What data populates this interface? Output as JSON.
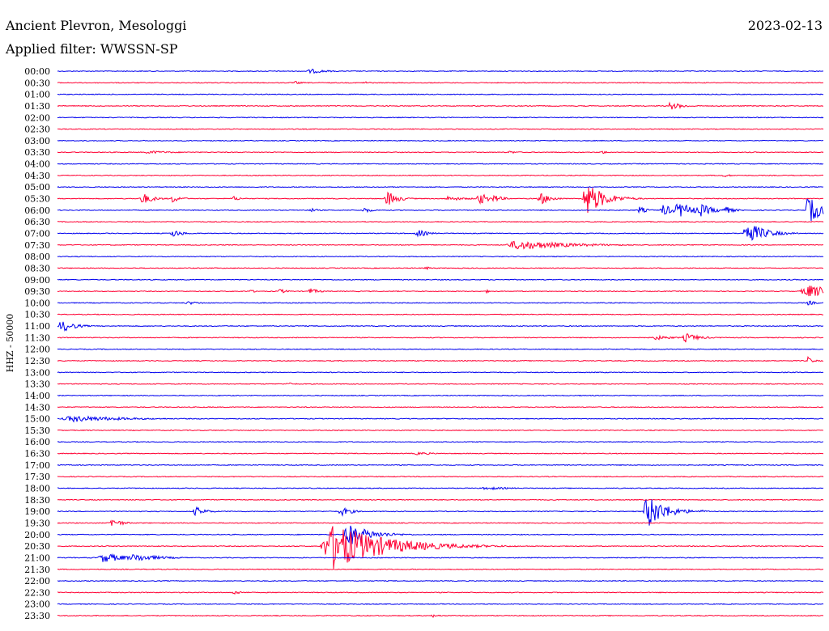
{
  "chart_data": {
    "type": "line",
    "title": "Ancient Plevron, Mesologgi",
    "date": "2023-02-13",
    "filter_label": "Applied filter: WWSSN-SP",
    "channel_label": "HHZ - 50000",
    "row_labels": [
      "00:00",
      "00:30",
      "01:00",
      "01:30",
      "02:00",
      "02:30",
      "03:00",
      "03:30",
      "04:00",
      "04:30",
      "05:00",
      "05:30",
      "06:00",
      "06:30",
      "07:00",
      "07:30",
      "08:00",
      "08:30",
      "09:00",
      "09:30",
      "10:00",
      "10:30",
      "11:00",
      "11:30",
      "12:00",
      "12:30",
      "13:00",
      "13:30",
      "14:00",
      "14:30",
      "15:00",
      "15:30",
      "16:00",
      "16:30",
      "17:00",
      "17:30",
      "18:00",
      "18:30",
      "19:00",
      "19:30",
      "20:00",
      "20:30",
      "21:00",
      "21:30",
      "22:00",
      "22:30",
      "23:00",
      "23:30"
    ],
    "trace_colors": [
      "#0000ee",
      "#ff0033"
    ],
    "events": [
      {
        "row": 0,
        "t": 0.33,
        "amp": 3,
        "dur": 0.02
      },
      {
        "row": 1,
        "t": 0.31,
        "amp": 2,
        "dur": 0.01
      },
      {
        "row": 1,
        "t": 0.4,
        "amp": 2,
        "dur": 0.01
      },
      {
        "row": 3,
        "t": 0.8,
        "amp": 5,
        "dur": 0.015
      },
      {
        "row": 7,
        "t": 0.12,
        "amp": 2,
        "dur": 0.03
      },
      {
        "row": 7,
        "t": 0.59,
        "amp": 2,
        "dur": 0.01
      },
      {
        "row": 7,
        "t": 0.71,
        "amp": 2,
        "dur": 0.01
      },
      {
        "row": 9,
        "t": 0.87,
        "amp": 2,
        "dur": 0.01
      },
      {
        "row": 11,
        "t": 0.11,
        "amp": 8,
        "dur": 0.012
      },
      {
        "row": 11,
        "t": 0.15,
        "amp": 5,
        "dur": 0.01
      },
      {
        "row": 11,
        "t": 0.23,
        "amp": 3,
        "dur": 0.01
      },
      {
        "row": 11,
        "t": 0.43,
        "amp": 10,
        "dur": 0.012
      },
      {
        "row": 11,
        "t": 0.51,
        "amp": 3,
        "dur": 0.02
      },
      {
        "row": 11,
        "t": 0.55,
        "amp": 8,
        "dur": 0.012
      },
      {
        "row": 11,
        "t": 0.57,
        "amp": 5,
        "dur": 0.01
      },
      {
        "row": 11,
        "t": 0.63,
        "amp": 8,
        "dur": 0.012
      },
      {
        "row": 11,
        "t": 0.69,
        "amp": 22,
        "dur": 0.02
      },
      {
        "row": 12,
        "t": 0.33,
        "amp": 3,
        "dur": 0.008
      },
      {
        "row": 12,
        "t": 0.4,
        "amp": 4,
        "dur": 0.008
      },
      {
        "row": 12,
        "t": 0.76,
        "amp": 5,
        "dur": 0.008
      },
      {
        "row": 12,
        "t": 0.79,
        "amp": 8,
        "dur": 0.012
      },
      {
        "row": 12,
        "t": 0.81,
        "amp": 10,
        "dur": 0.02
      },
      {
        "row": 12,
        "t": 0.84,
        "amp": 8,
        "dur": 0.015
      },
      {
        "row": 12,
        "t": 0.87,
        "amp": 6,
        "dur": 0.01
      },
      {
        "row": 12,
        "t": 0.98,
        "amp": 18,
        "dur": 0.015
      },
      {
        "row": 14,
        "t": 0.15,
        "amp": 5,
        "dur": 0.012
      },
      {
        "row": 14,
        "t": 0.47,
        "amp": 5,
        "dur": 0.012
      },
      {
        "row": 14,
        "t": 0.9,
        "amp": 15,
        "dur": 0.02
      },
      {
        "row": 15,
        "t": 0.6,
        "amp": 6,
        "dur": 0.06
      },
      {
        "row": 17,
        "t": 0.48,
        "amp": 2,
        "dur": 0.01
      },
      {
        "row": 19,
        "t": 0.25,
        "amp": 2,
        "dur": 0.01
      },
      {
        "row": 19,
        "t": 0.29,
        "amp": 3,
        "dur": 0.01
      },
      {
        "row": 19,
        "t": 0.33,
        "amp": 4,
        "dur": 0.01
      },
      {
        "row": 19,
        "t": 0.56,
        "amp": 2,
        "dur": 0.005
      },
      {
        "row": 19,
        "t": 0.98,
        "amp": 8,
        "dur": 0.04
      },
      {
        "row": 20,
        "t": 0.17,
        "amp": 2,
        "dur": 0.02
      },
      {
        "row": 20,
        "t": 0.98,
        "amp": 3,
        "dur": 0.01
      },
      {
        "row": 22,
        "t": 0.005,
        "amp": 8,
        "dur": 0.015
      },
      {
        "row": 23,
        "t": 0.78,
        "amp": 3,
        "dur": 0.02
      },
      {
        "row": 23,
        "t": 0.82,
        "amp": 6,
        "dur": 0.015
      },
      {
        "row": 25,
        "t": 0.98,
        "amp": 5,
        "dur": 0.006
      },
      {
        "row": 27,
        "t": 0.3,
        "amp": 2,
        "dur": 0.01
      },
      {
        "row": 30,
        "t": 0.02,
        "amp": 4,
        "dur": 0.06
      },
      {
        "row": 33,
        "t": 0.47,
        "amp": 2,
        "dur": 0.02
      },
      {
        "row": 36,
        "t": 0.56,
        "amp": 2,
        "dur": 0.03
      },
      {
        "row": 38,
        "t": 0.18,
        "amp": 6,
        "dur": 0.012
      },
      {
        "row": 38,
        "t": 0.37,
        "amp": 6,
        "dur": 0.012
      },
      {
        "row": 38,
        "t": 0.77,
        "amp": 22,
        "dur": 0.02
      },
      {
        "row": 38,
        "t": 0.84,
        "amp": 2,
        "dur": 0.01
      },
      {
        "row": 39,
        "t": 0.07,
        "amp": 6,
        "dur": 0.012
      },
      {
        "row": 40,
        "t": 0.38,
        "amp": 14,
        "dur": 0.025
      },
      {
        "row": 40,
        "t": 0.39,
        "amp": 9,
        "dur": 0.015
      },
      {
        "row": 41,
        "t": 0.36,
        "amp": 28,
        "dur": 0.06
      },
      {
        "row": 42,
        "t": 0.06,
        "amp": 6,
        "dur": 0.03
      },
      {
        "row": 42,
        "t": 0.1,
        "amp": 5,
        "dur": 0.03
      },
      {
        "row": 45,
        "t": 0.23,
        "amp": 3,
        "dur": 0.01
      },
      {
        "row": 47,
        "t": 0.49,
        "amp": 2,
        "dur": 0.01
      }
    ]
  }
}
